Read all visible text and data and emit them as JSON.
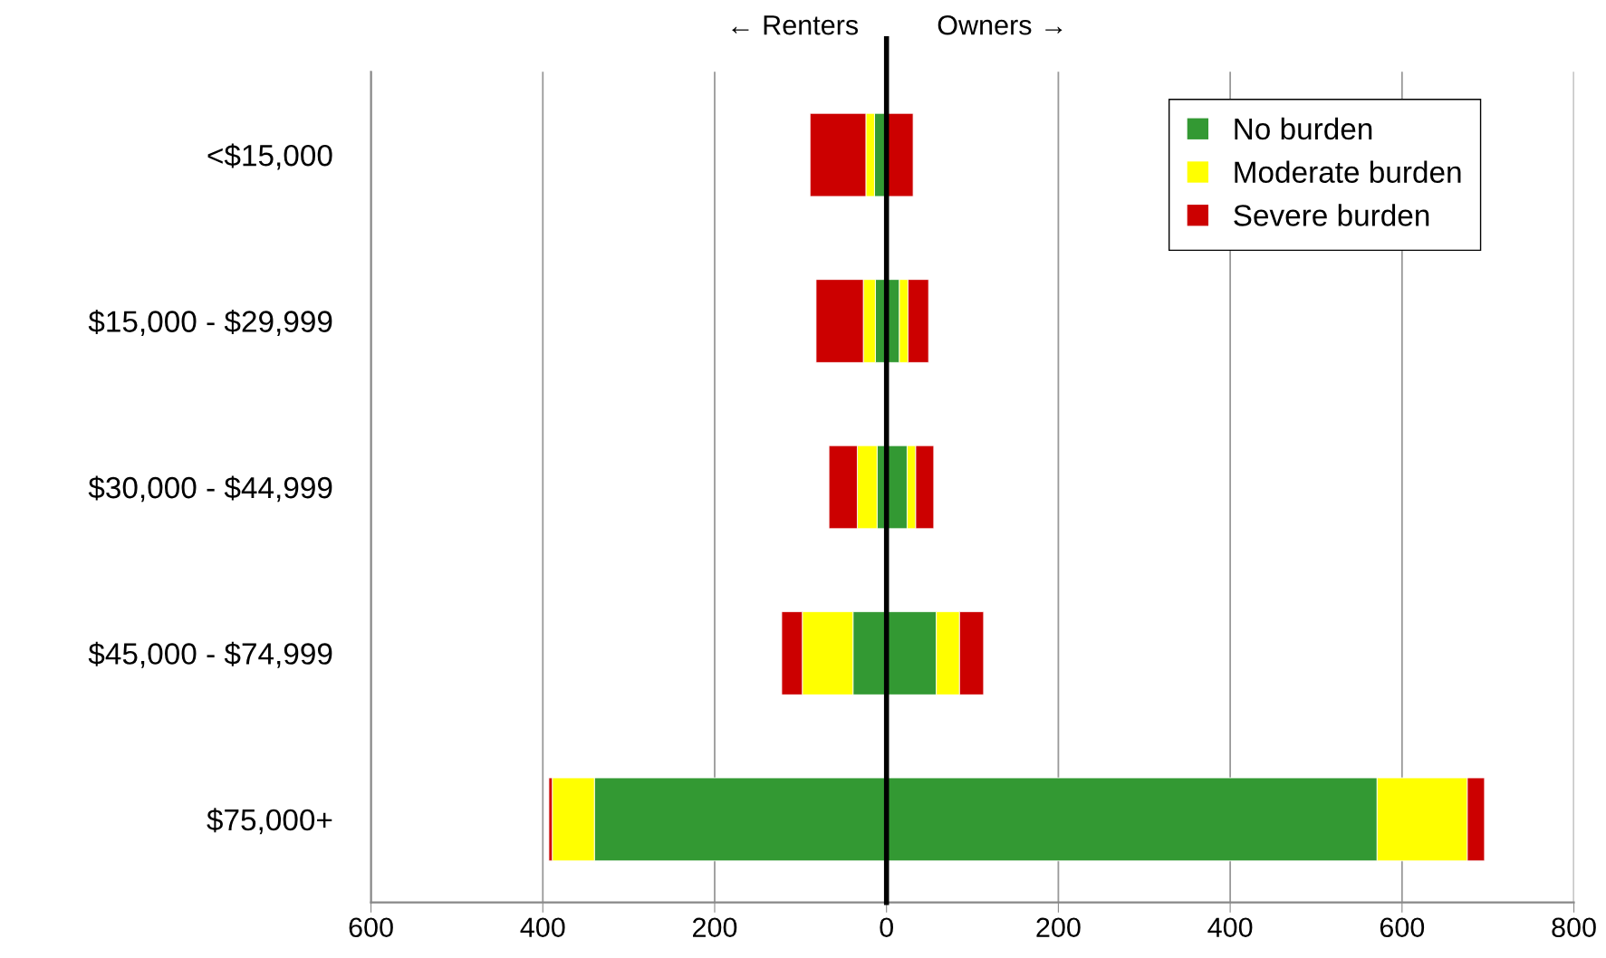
{
  "chart_data": {
    "type": "bar",
    "orientation": "horizontal",
    "stacked": true,
    "categories": [
      "<$15,000",
      "$15,000 - $29,999",
      "$30,000 - $44,999",
      "$45,000 - $74,999",
      "$75,000+"
    ],
    "series": [
      {
        "name": "No burden",
        "color": "#339933",
        "values": [
          null,
          15,
          24,
          58,
          571
        ]
      },
      {
        "name": "Moderate burden",
        "color": "#ffff00",
        "values": [
          null,
          10,
          10,
          27,
          105
        ]
      },
      {
        "name": "Severe burden",
        "color": "#cc0000",
        "values": [
          31,
          24,
          21,
          28,
          20
        ]
      },
      {
        "color": "#339933",
        "values": [
          -14,
          -13,
          -11,
          -39,
          -340
        ]
      },
      {
        "color": "#ffff00",
        "values": [
          -10,
          -14,
          -23,
          -59,
          -49
        ]
      },
      {
        "color": "#cc0000",
        "values": [
          -65,
          -55,
          -33,
          -24,
          -4
        ]
      }
    ],
    "xlim": [
      -600,
      800
    ],
    "xticks": [
      {
        "value": -600,
        "label": "600"
      },
      {
        "value": -400,
        "label": "400"
      },
      {
        "value": -200,
        "label": "200"
      },
      0,
      200,
      400,
      600,
      800
    ],
    "ref_lines": [
      {
        "axis": "x",
        "value": 0,
        "color": "#000000"
      }
    ],
    "annotations": [
      "← Renters",
      "Owners →"
    ],
    "grid": "x",
    "legend": "top right"
  }
}
